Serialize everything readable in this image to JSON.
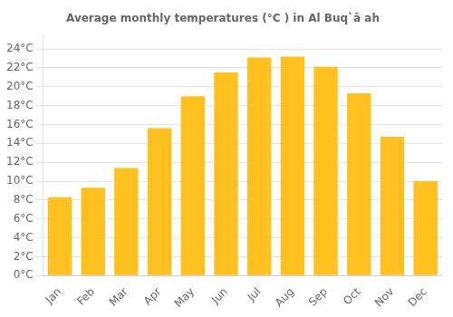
{
  "chart_data": {
    "type": "bar",
    "title": "Average monthly temperatures (°C ) in Al Buq`ā ah",
    "categories": [
      "Jan",
      "Feb",
      "Mar",
      "Apr",
      "May",
      "Jun",
      "Jul",
      "Aug",
      "Sep",
      "Oct",
      "Nov",
      "Dec"
    ],
    "values": [
      8.3,
      9.3,
      11.4,
      15.6,
      19.0,
      21.5,
      23.1,
      23.2,
      22.1,
      19.3,
      14.7,
      10.0
    ],
    "color": "#FFC020",
    "ylim": [
      0,
      25.5
    ],
    "yticks": [
      {
        "value": 0,
        "label": "0°C"
      },
      {
        "value": 2,
        "label": "2°C"
      },
      {
        "value": 4,
        "label": "4°C"
      },
      {
        "value": 6,
        "label": "6°C"
      },
      {
        "value": 8,
        "label": "8°C"
      },
      {
        "value": 10,
        "label": "10°C"
      },
      {
        "value": 12,
        "label": "12°C"
      },
      {
        "value": 14,
        "label": "14°C"
      },
      {
        "value": 16,
        "label": "16°C"
      },
      {
        "value": 18,
        "label": "18°C"
      },
      {
        "value": 20,
        "label": "20°C"
      },
      {
        "value": 22,
        "label": "22°C"
      },
      {
        "value": 24,
        "label": "24°C"
      }
    ],
    "grid": true
  }
}
